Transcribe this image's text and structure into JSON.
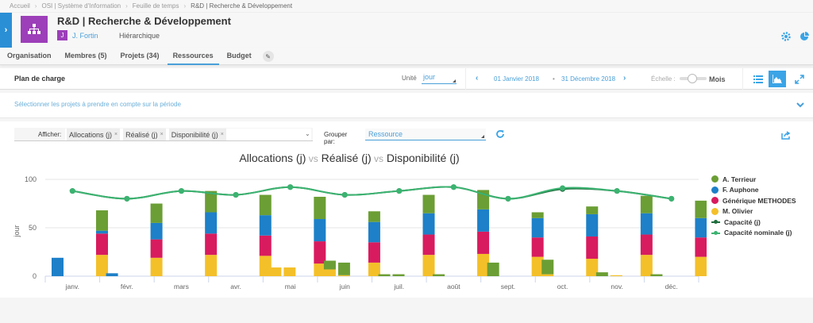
{
  "breadcrumb": [
    "Accueil",
    "OSI | Système d'Information",
    "Feuille de temps",
    "R&D | Recherche & Développement"
  ],
  "header": {
    "title": "R&D | Recherche & Développement",
    "owner_initial": "J",
    "owner_name": "J. Fortin",
    "hierarchy": "Hiérarchique",
    "icons": [
      "gear-icon",
      "pie-chart-icon"
    ]
  },
  "tabs": [
    {
      "label": "Organisation",
      "active": false
    },
    {
      "label": "Membres (5)",
      "active": false
    },
    {
      "label": "Projets (34)",
      "active": false
    },
    {
      "label": "Ressources",
      "active": true
    },
    {
      "label": "Budget",
      "active": false
    }
  ],
  "toolbar": {
    "title": "Plan de charge",
    "unit_label": "Unité",
    "unit_value": "jour",
    "date_start": "01 Janvier 2018",
    "date_end": "31 Décembre 2018",
    "scale_label": "Échelle :",
    "scale_value": "Mois"
  },
  "project_bar": {
    "hint": "Sélectionner les projets à prendre en compte sur la période"
  },
  "filters": {
    "afficher_label": "Afficher:",
    "tags": [
      "Allocations (j)",
      "Réalisé (j)",
      "Disponibilité (j)"
    ],
    "group_label": "Grouper par:",
    "group_value": "Ressource"
  },
  "colors": {
    "accent": "#4a9fd8",
    "A. Terrieur": "#6b9e34",
    "F. Auphone": "#1d80c8",
    "Générique METHODES": "#d81b5e",
    "M. Olivier": "#f4c029",
    "capacite": "#1f6e3e",
    "capacite_nominale": "#3cb371"
  },
  "chart_data": {
    "type": "bar",
    "title": "Allocations (j) vs Réalisé (j) vs Disponibilité (j)",
    "title_parts": [
      "Allocations (j)",
      "vs",
      "Réalisé (j)",
      "vs",
      "Disponibilité (j)"
    ],
    "xlabel": "",
    "ylabel": "jour",
    "ylim": [
      0,
      100
    ],
    "yticks": [
      0,
      50,
      100
    ],
    "grid": true,
    "legend_position": "right",
    "categories": [
      "janv.",
      "févr.",
      "mars",
      "avr.",
      "mai",
      "juin",
      "juil.",
      "août",
      "sept.",
      "oct.",
      "nov.",
      "déc."
    ],
    "stacks": [
      "Allocations (j)",
      "Réalisé (j)",
      "Disponibilité (j)"
    ],
    "series": [
      {
        "name": "A. Terrieur",
        "color": "#6b9e34",
        "allocations": [
          0,
          0,
          0,
          0,
          0,
          9,
          2,
          2,
          14,
          15,
          4,
          2
        ],
        "realise": [
          0,
          0,
          0,
          0,
          0,
          13,
          2,
          0,
          0,
          0,
          0,
          0
        ],
        "disponibilite": [
          21,
          20,
          22,
          21,
          23,
          11,
          19,
          20,
          6,
          8,
          18,
          18
        ]
      },
      {
        "name": "F. Auphone",
        "color": "#1d80c8",
        "allocations": [
          19,
          3,
          0,
          0,
          0,
          0,
          0,
          0,
          0,
          0,
          0,
          0
        ],
        "realise": [
          0,
          0,
          0,
          0,
          0,
          0,
          0,
          0,
          0,
          0,
          0,
          0
        ],
        "disponibilite": [
          3,
          17,
          22,
          21,
          23,
          21,
          22,
          23,
          20,
          23,
          22,
          20
        ]
      },
      {
        "name": "Générique METHODES",
        "color": "#d81b5e",
        "allocations": [
          0,
          0,
          0,
          0,
          0,
          0,
          0,
          0,
          0,
          0,
          0,
          0
        ],
        "realise": [
          0,
          0,
          0,
          0,
          0,
          0,
          0,
          0,
          0,
          0,
          0,
          0
        ],
        "disponibilite": [
          22,
          19,
          22,
          21,
          23,
          21,
          21,
          23,
          20,
          23,
          21,
          20
        ]
      },
      {
        "name": "M. Olivier",
        "color": "#f4c029",
        "allocations": [
          0,
          0,
          0,
          0,
          9,
          7,
          0,
          0,
          0,
          2,
          0,
          0
        ],
        "realise": [
          0,
          0,
          0,
          0,
          9,
          1,
          0,
          0,
          0,
          0,
          1,
          0
        ],
        "disponibilite": [
          22,
          19,
          22,
          21,
          13,
          14,
          22,
          23,
          20,
          18,
          22,
          20
        ]
      }
    ],
    "lines": [
      {
        "name": "Capacité (j)",
        "color": "#1f6e3e",
        "values": [
          88,
          80,
          88,
          84,
          92,
          84,
          88,
          92,
          80,
          90,
          88,
          80
        ]
      },
      {
        "name": "Capacité nominale (j)",
        "color": "#3cb371",
        "values": [
          88,
          80,
          88,
          84,
          92,
          84,
          88,
          92,
          80,
          91,
          88,
          80
        ]
      }
    ]
  }
}
